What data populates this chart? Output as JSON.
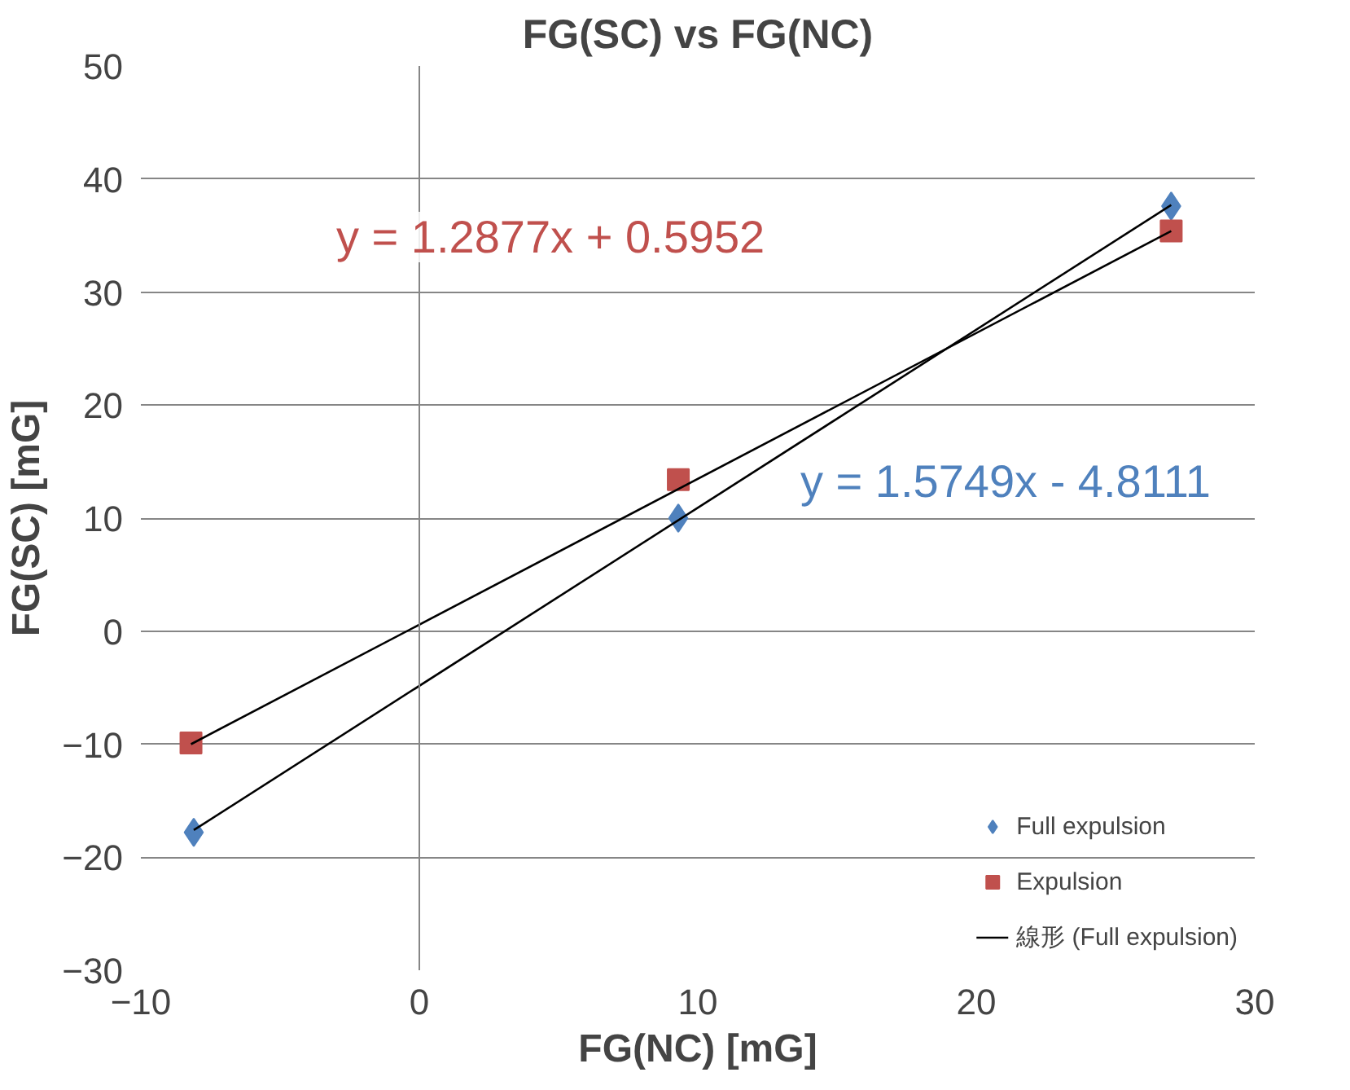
{
  "chart_data": {
    "type": "scatter",
    "title": "FG(SC) vs FG(NC)",
    "xlabel": "FG(NC) [mG]",
    "ylabel": "FG(SC) [mG]",
    "xlim": [
      -10,
      30
    ],
    "xticks": [
      -10,
      0,
      10,
      20,
      30
    ],
    "ylim": [
      -30,
      50
    ],
    "yticks": [
      -30,
      -20,
      -10,
      0,
      10,
      20,
      30,
      40,
      50
    ],
    "grid": "y",
    "legend": "right",
    "ref_lines": [
      {
        "axis": "x",
        "value": 0,
        "color": "#868686"
      }
    ],
    "series": [
      {
        "name": "Full expulsion",
        "color": "#4f81bd",
        "marker": "diamond",
        "x": [
          -8.1,
          9.3,
          27.0
        ],
        "values": [
          -17.8,
          10,
          37.6
        ]
      },
      {
        "name": "Expulsion",
        "color": "#c0504d",
        "marker": "square",
        "x": [
          -8.2,
          9.3,
          27.0
        ],
        "values": [
          -9.9,
          13.4,
          35.4
        ]
      },
      {
        "name": "線形 (Full expulsion)",
        "type": "line",
        "color": "#000000",
        "x": [
          -8.1,
          27.0
        ],
        "values": [
          -17.6,
          37.7
        ]
      },
      {
        "type": "line",
        "color": "#000000",
        "x": [
          -8.2,
          27.0
        ],
        "values": [
          -10.0,
          35.4
        ]
      }
    ],
    "annotations": [
      "y = 1.5749x - 4.8111",
      "y = 1.2877x + 0.5952"
    ]
  }
}
